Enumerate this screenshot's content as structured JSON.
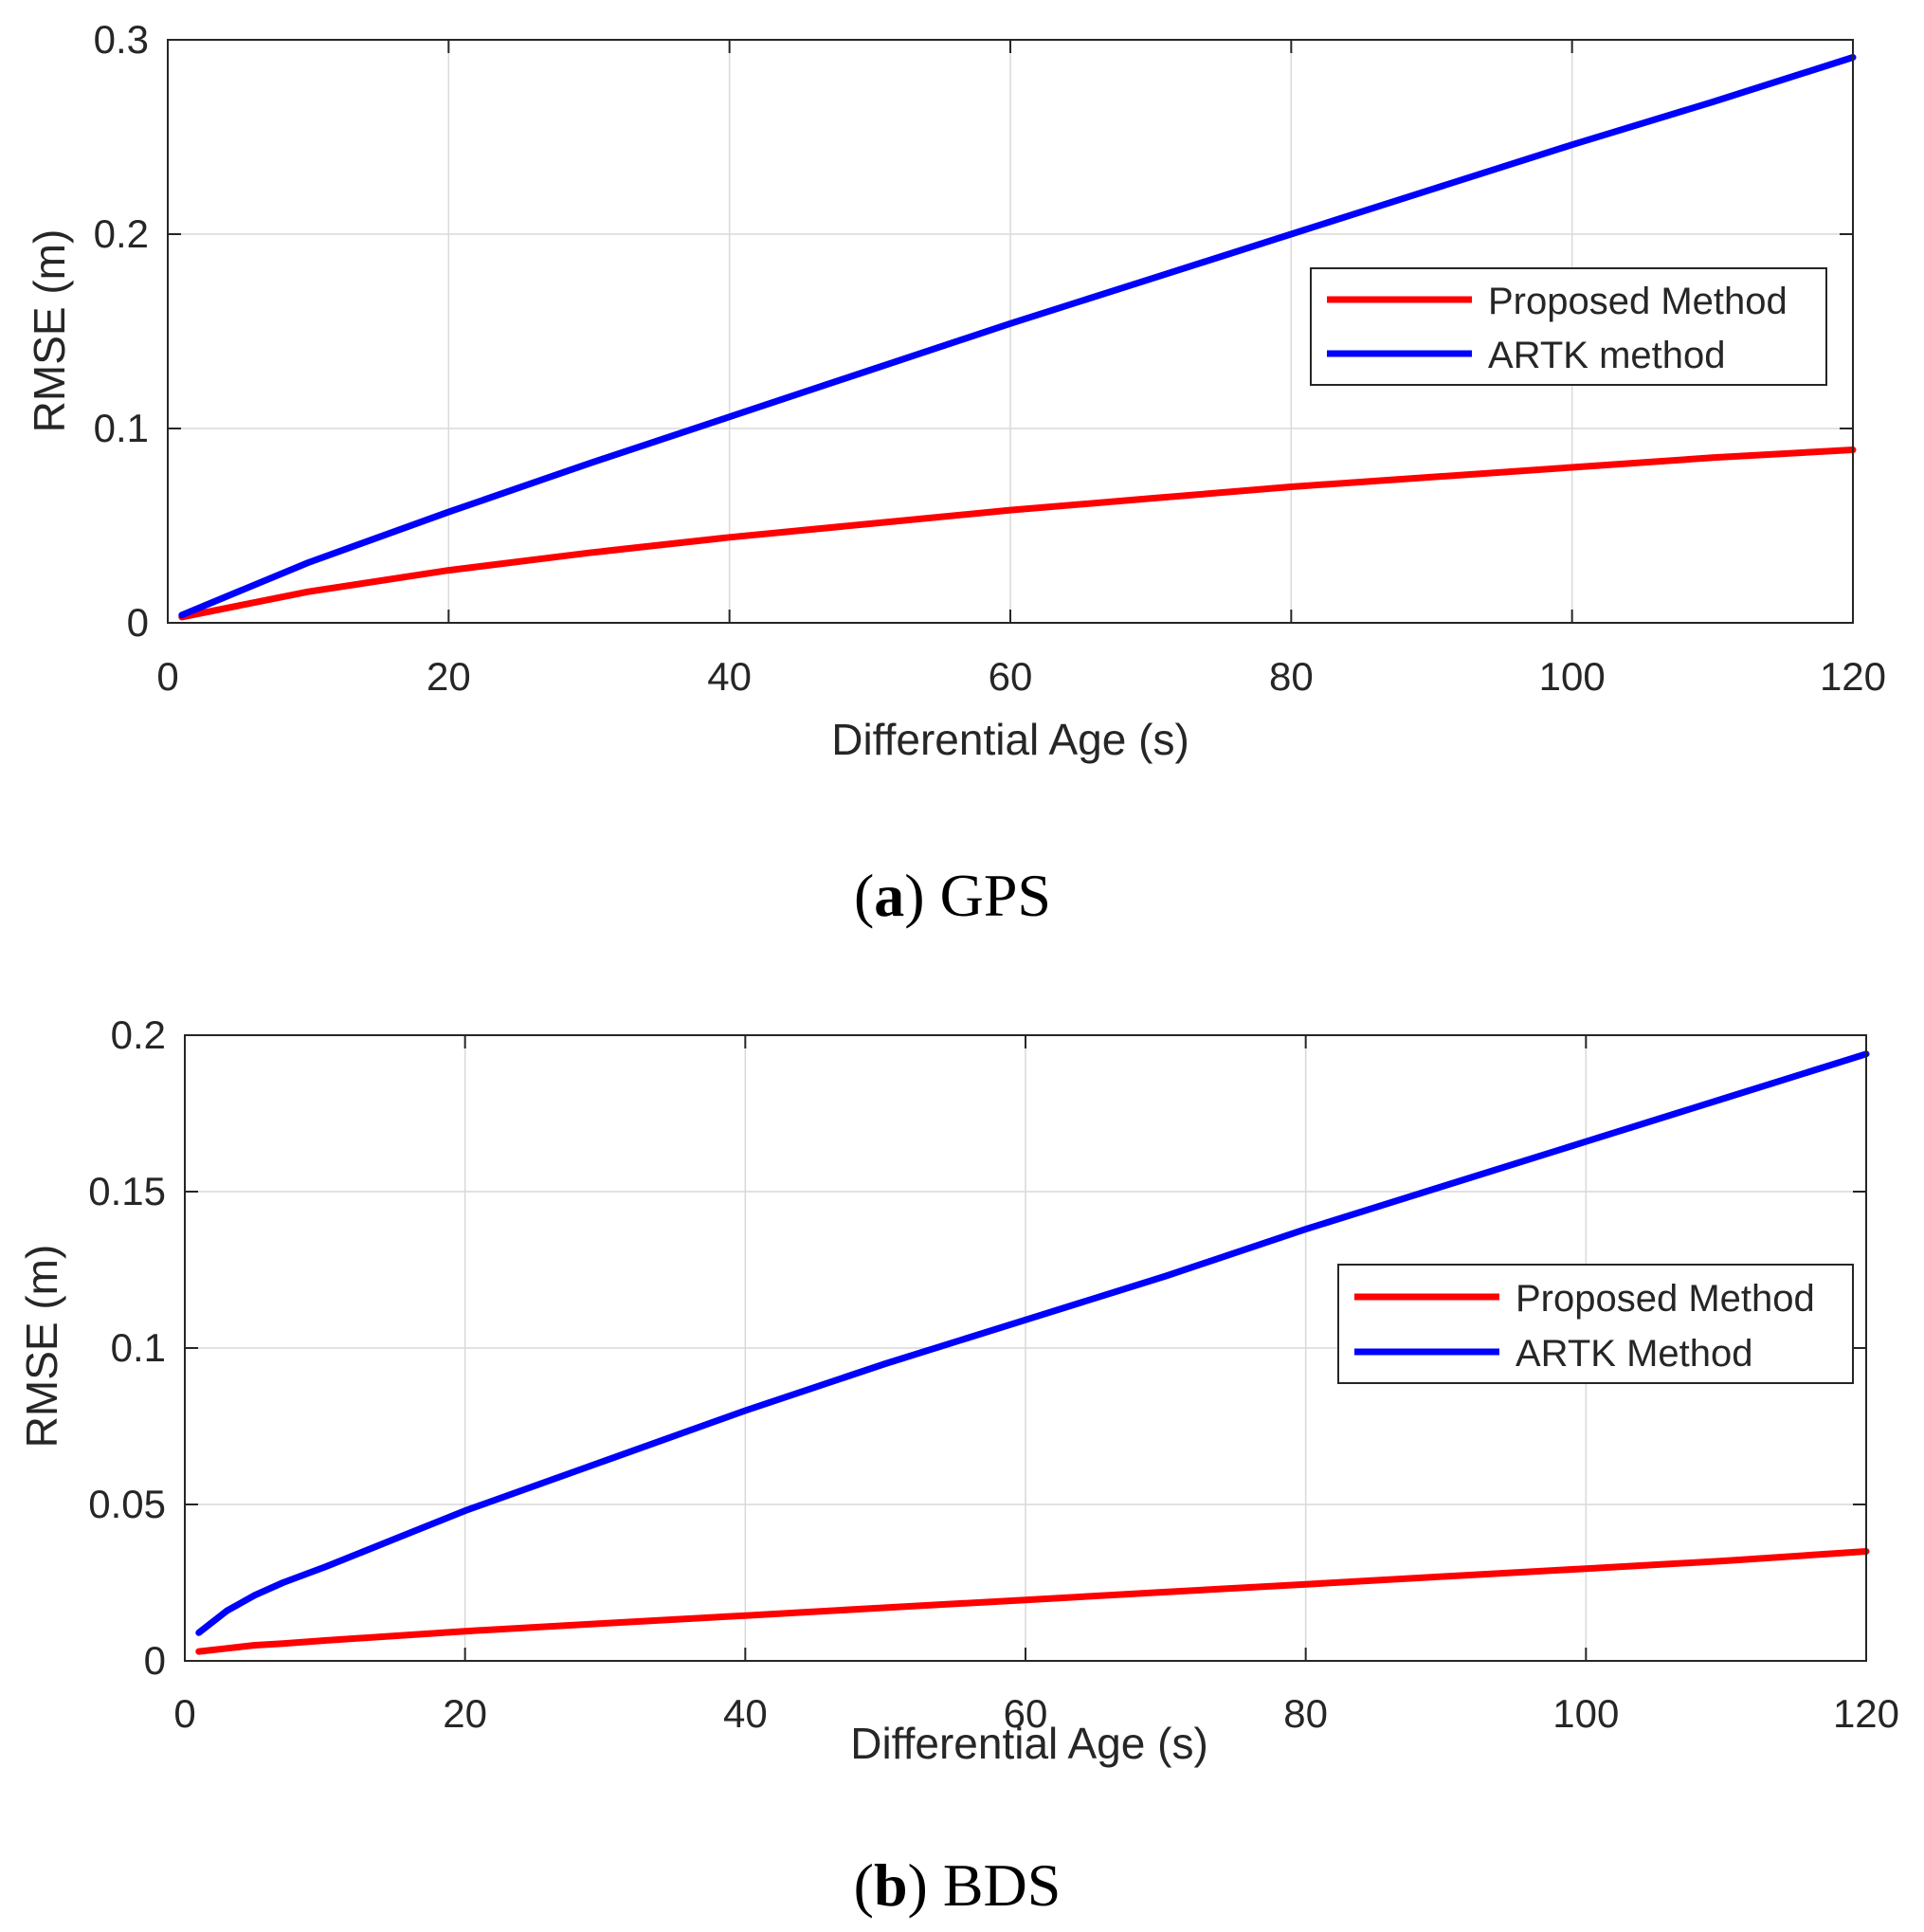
{
  "figure": {
    "panels": [
      {
        "caption_letter": "a",
        "caption_open": "(",
        "caption_close": ")",
        "caption_text": "GPS"
      },
      {
        "caption_letter": "b",
        "caption_open": "(",
        "caption_close": ")",
        "caption_text": "BDS"
      }
    ]
  },
  "colors": {
    "proposed": "#ff0000",
    "artk": "#0000ff",
    "grid": "#d9d9d9",
    "axis": "#262626"
  },
  "chart_data": [
    {
      "type": "line",
      "title": "",
      "xlabel": "Differential Age (s)",
      "ylabel": "RMSE (m)",
      "xlim": [
        0,
        120
      ],
      "ylim": [
        0,
        0.3
      ],
      "xticks": [
        0,
        20,
        40,
        60,
        80,
        100,
        120
      ],
      "xtick_labels": [
        "0",
        "20",
        "40",
        "60",
        "80",
        "100",
        "120"
      ],
      "yticks": [
        0,
        0.1,
        0.2,
        0.3
      ],
      "ytick_labels": [
        "0",
        "0.1",
        "0.2",
        "0.3"
      ],
      "grid": true,
      "legend_position": "top-right",
      "x": [
        1,
        10,
        20,
        30,
        40,
        50,
        60,
        70,
        80,
        90,
        100,
        110,
        120
      ],
      "series": [
        {
          "name": "Proposed Method",
          "color": "#ff0000",
          "values": [
            0.003,
            0.016,
            0.027,
            0.036,
            0.044,
            0.051,
            0.058,
            0.064,
            0.07,
            0.075,
            0.08,
            0.085,
            0.089
          ]
        },
        {
          "name": "ARTK method",
          "color": "#0000ff",
          "values": [
            0.004,
            0.031,
            0.057,
            0.082,
            0.106,
            0.13,
            0.154,
            0.177,
            0.2,
            0.223,
            0.246,
            0.268,
            0.291
          ]
        }
      ]
    },
    {
      "type": "line",
      "title": "",
      "xlabel": "Differential Age (s)",
      "ylabel": "RMSE (m)",
      "xlim": [
        0,
        120
      ],
      "ylim": [
        0,
        0.2
      ],
      "xticks": [
        0,
        20,
        40,
        60,
        80,
        100,
        120
      ],
      "xtick_labels": [
        "0",
        "20",
        "40",
        "60",
        "80",
        "100",
        "120"
      ],
      "yticks": [
        0,
        0.05,
        0.1,
        0.15,
        0.2
      ],
      "ytick_labels": [
        "0",
        "0.05",
        "0.1",
        "0.15",
        "0.2"
      ],
      "grid": true,
      "legend_position": "right",
      "x": [
        1,
        3,
        5,
        7,
        10,
        15,
        20,
        30,
        40,
        50,
        60,
        70,
        80,
        90,
        100,
        110,
        120
      ],
      "series": [
        {
          "name": "Proposed Method",
          "color": "#ff0000",
          "values": [
            0.003,
            0.004,
            0.005,
            0.0055,
            0.0065,
            0.008,
            0.0095,
            0.012,
            0.0145,
            0.017,
            0.0195,
            0.022,
            0.0245,
            0.027,
            0.0295,
            0.032,
            0.035
          ]
        },
        {
          "name": "ARTK Method",
          "color": "#0000ff",
          "values": [
            0.009,
            0.016,
            0.021,
            0.025,
            0.03,
            0.039,
            0.048,
            0.064,
            0.08,
            0.095,
            0.109,
            0.123,
            0.138,
            0.152,
            0.166,
            0.18,
            0.194
          ]
        }
      ]
    }
  ]
}
